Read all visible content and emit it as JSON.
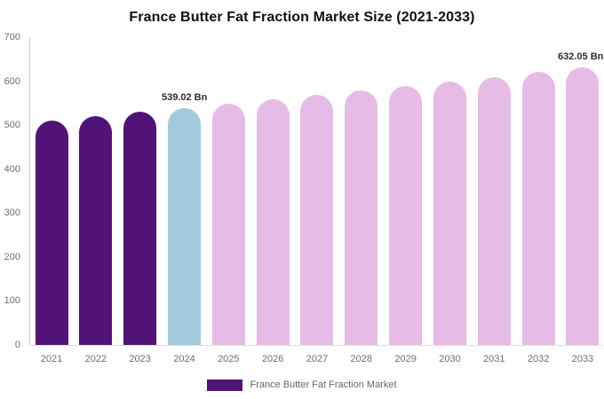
{
  "chart_data": {
    "type": "bar",
    "title": "France Butter Fat Fraction Market Size (2021-2033)",
    "categories": [
      "2021",
      "2022",
      "2023",
      "2024",
      "2025",
      "2026",
      "2027",
      "2028",
      "2029",
      "2030",
      "2031",
      "2032",
      "2033"
    ],
    "values": [
      511.2,
      520.3,
      529.6,
      539.02,
      548.6,
      558.4,
      568.4,
      578.5,
      588.9,
      599.4,
      610.1,
      621.0,
      632.05
    ],
    "value_labels": [
      {
        "category": "2024",
        "text": "539.02 Bn"
      },
      {
        "category": "2033",
        "text": "632.05 Bn"
      }
    ],
    "bar_colors": [
      "#511378",
      "#511378",
      "#511378",
      "#A1CADD",
      "#E6BCE6",
      "#E6BCE6",
      "#E6BCE6",
      "#E6BCE6",
      "#E6BCE6",
      "#E6BCE6",
      "#E6BCE6",
      "#E6BCE6",
      "#E6BCE6"
    ],
    "xlabel": "",
    "ylabel": "",
    "ylim": [
      0,
      700
    ],
    "yticks": [
      0,
      100,
      200,
      300,
      400,
      500,
      600,
      700
    ],
    "grid": false,
    "legend_position": "bottom",
    "legend": [
      {
        "label": "France Butter Fat Fraction Market",
        "color": "#511378"
      }
    ],
    "unit": "Bn"
  },
  "colors": {
    "past_bars": "#511378",
    "highlight_bar_2024": "#A1CADD",
    "forecast_bars": "#E6BCE6",
    "axis_line": "#cccccc",
    "axis_text": "#6e6e6e",
    "title_text": "#111111",
    "data_label_text": "#2d2d2d",
    "background": "#ffffff"
  }
}
